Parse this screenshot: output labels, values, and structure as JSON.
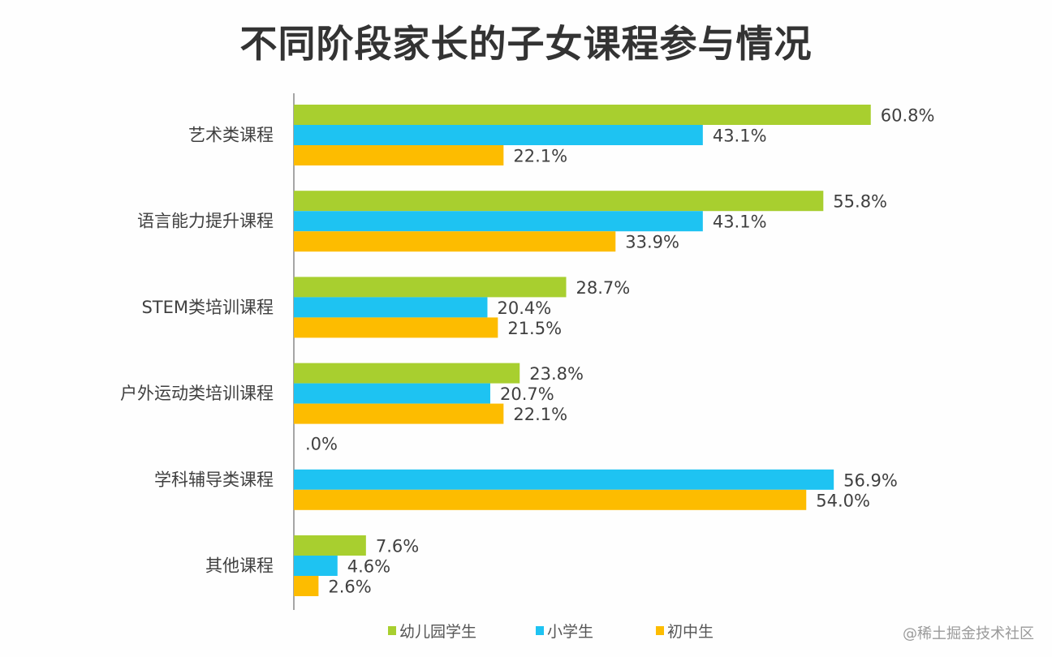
{
  "chart_data": {
    "type": "bar",
    "orientation": "horizontal",
    "title": "不同阶段家长的子女课程参与情况",
    "categories": [
      "艺术类课程",
      "语言能力提升课程",
      "STEM类培训课程",
      "户外运动类培训课程",
      "学科辅导类课程",
      "其他课程"
    ],
    "series": [
      {
        "name": "幼儿园学生",
        "color": "#a8cf2f",
        "values": [
          60.8,
          55.8,
          28.7,
          23.8,
          0.0,
          7.6
        ],
        "labels": [
          "60.8%",
          "55.8%",
          "28.7%",
          "23.8%",
          ".0%",
          "7.6%"
        ]
      },
      {
        "name": "小学生",
        "color": "#1ec3f2",
        "values": [
          43.1,
          43.1,
          20.4,
          20.7,
          56.9,
          4.6
        ],
        "labels": [
          "43.1%",
          "43.1%",
          "20.4%",
          "20.7%",
          "56.9%",
          "4.6%"
        ]
      },
      {
        "name": "初中生",
        "color": "#fdbc00",
        "values": [
          22.1,
          33.9,
          21.5,
          22.1,
          54.0,
          2.6
        ],
        "labels": [
          "22.1%",
          "33.9%",
          "21.5%",
          "22.1%",
          "54.0%",
          "2.6%"
        ]
      }
    ],
    "unit": "%",
    "xlim": [
      0,
      70
    ],
    "grid": false,
    "legend_position": "bottom"
  },
  "watermark": "@稀土掘金技术社区"
}
